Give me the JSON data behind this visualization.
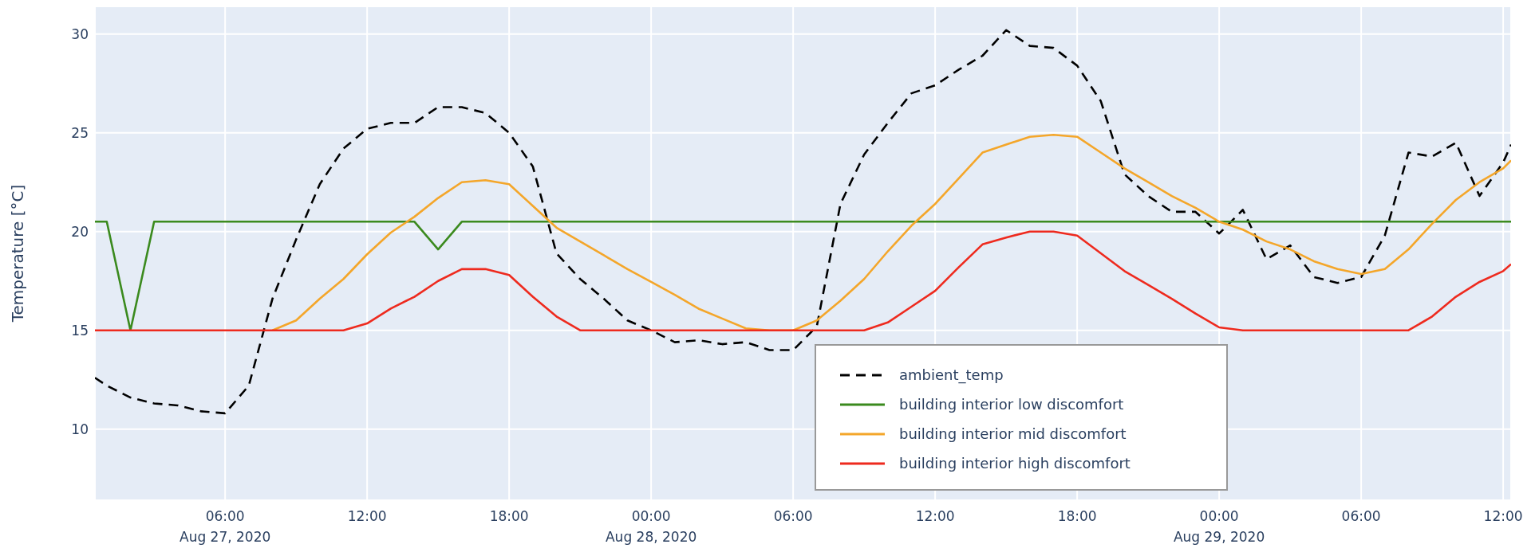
{
  "chart_data": {
    "type": "line",
    "ylabel": "Temperature [°C]",
    "x": [
      "2020-08-27T00:30",
      "2020-08-27T01:00",
      "2020-08-27T02:00",
      "2020-08-27T03:00",
      "2020-08-27T04:00",
      "2020-08-27T05:00",
      "2020-08-27T06:00",
      "2020-08-27T07:00",
      "2020-08-27T08:00",
      "2020-08-27T09:00",
      "2020-08-27T10:00",
      "2020-08-27T11:00",
      "2020-08-27T12:00",
      "2020-08-27T13:00",
      "2020-08-27T14:00",
      "2020-08-27T15:00",
      "2020-08-27T16:00",
      "2020-08-27T17:00",
      "2020-08-27T18:00",
      "2020-08-27T19:00",
      "2020-08-27T20:00",
      "2020-08-27T21:00",
      "2020-08-27T22:00",
      "2020-08-27T23:00",
      "2020-08-28T00:00",
      "2020-08-28T01:00",
      "2020-08-28T02:00",
      "2020-08-28T03:00",
      "2020-08-28T04:00",
      "2020-08-28T05:00",
      "2020-08-28T06:00",
      "2020-08-28T07:00",
      "2020-08-28T08:00",
      "2020-08-28T09:00",
      "2020-08-28T10:00",
      "2020-08-28T11:00",
      "2020-08-28T12:00",
      "2020-08-28T13:00",
      "2020-08-28T14:00",
      "2020-08-28T15:00",
      "2020-08-28T16:00",
      "2020-08-28T17:00",
      "2020-08-28T18:00",
      "2020-08-28T19:00",
      "2020-08-28T20:00",
      "2020-08-28T21:00",
      "2020-08-28T22:00",
      "2020-08-28T23:00",
      "2020-08-29T00:00",
      "2020-08-29T01:00",
      "2020-08-29T02:00",
      "2020-08-29T03:00",
      "2020-08-29T04:00",
      "2020-08-29T05:00",
      "2020-08-29T06:00",
      "2020-08-29T07:00",
      "2020-08-29T08:00",
      "2020-08-29T09:00",
      "2020-08-29T10:00",
      "2020-08-29T11:00",
      "2020-08-29T12:00",
      "2020-08-29T12:20"
    ],
    "series": [
      {
        "name": "ambient_temp",
        "color": "#000000",
        "line_style": "dashed",
        "values": [
          12.6,
          12.2,
          11.6,
          11.3,
          11.2,
          10.9,
          10.8,
          12.2,
          16.6,
          19.6,
          22.4,
          24.2,
          25.2,
          25.5,
          25.5,
          26.3,
          26.3,
          26.0,
          25.0,
          23.3,
          18.9,
          17.6,
          16.6,
          15.5,
          15.0,
          14.4,
          14.5,
          14.3,
          14.4,
          14.0,
          14.0,
          15.2,
          21.4,
          23.9,
          25.5,
          27.0,
          27.4,
          28.2,
          28.9,
          30.2,
          29.4,
          29.3,
          28.4,
          26.6,
          22.9,
          21.8,
          21.0,
          21.0,
          19.9,
          21.1,
          18.6,
          19.3,
          17.7,
          17.4,
          17.7,
          19.8,
          24.0,
          23.8,
          24.5,
          21.8,
          23.5,
          24.4
        ]
      },
      {
        "name": "building interior low discomfort",
        "color": "#3b8a1e",
        "line_style": "solid",
        "values": [
          20.5,
          20.5,
          15.0,
          20.5,
          20.5,
          20.5,
          20.5,
          20.5,
          20.5,
          20.5,
          20.5,
          20.5,
          20.5,
          20.5,
          20.5,
          19.1,
          20.5,
          20.5,
          20.5,
          20.5,
          20.5,
          20.5,
          20.5,
          20.5,
          20.5,
          20.5,
          20.5,
          20.5,
          20.5,
          20.5,
          20.5,
          20.5,
          20.5,
          20.5,
          20.5,
          20.5,
          20.5,
          20.5,
          20.5,
          20.5,
          20.5,
          20.5,
          20.5,
          20.5,
          20.5,
          20.5,
          20.5,
          20.5,
          20.5,
          20.5,
          20.5,
          20.5,
          20.5,
          20.5,
          20.5,
          20.5,
          20.5,
          20.5,
          20.5,
          20.5,
          20.5,
          20.5
        ]
      },
      {
        "name": "building interior mid discomfort",
        "color": "#f4a62a",
        "line_style": "solid",
        "values": [
          null,
          null,
          null,
          null,
          null,
          null,
          null,
          null,
          15.0,
          15.5,
          16.6,
          17.6,
          18.85,
          19.95,
          20.75,
          21.7,
          22.5,
          22.6,
          22.4,
          21.3,
          20.2,
          19.5,
          18.8,
          18.1,
          17.45,
          16.8,
          16.1,
          15.6,
          15.1,
          15.0,
          15.0,
          15.5,
          16.5,
          17.6,
          19.0,
          20.3,
          21.4,
          22.7,
          24.0,
          24.4,
          24.8,
          24.9,
          24.8,
          24.0,
          23.2,
          22.5,
          21.8,
          21.2,
          20.5,
          20.1,
          19.5,
          19.1,
          18.5,
          18.1,
          17.85,
          18.1,
          19.1,
          20.4,
          21.6,
          22.5,
          23.2,
          23.6
        ]
      },
      {
        "name": "building interior high discomfort",
        "color": "#ee2a1e",
        "line_style": "solid",
        "values": [
          15.0,
          15.0,
          15.0,
          15.0,
          15.0,
          15.0,
          15.0,
          15.0,
          15.0,
          15.0,
          15.0,
          15.0,
          15.35,
          16.1,
          16.7,
          17.5,
          18.1,
          18.1,
          17.8,
          16.7,
          15.7,
          15.0,
          15.0,
          15.0,
          15.0,
          15.0,
          15.0,
          15.0,
          15.0,
          15.0,
          15.0,
          15.0,
          15.0,
          15.0,
          15.4,
          16.2,
          17.0,
          18.2,
          19.35,
          19.7,
          20.0,
          20.0,
          19.8,
          18.9,
          18.0,
          17.3,
          16.6,
          15.85,
          15.15,
          15.0,
          15.0,
          15.0,
          15.0,
          15.0,
          15.0,
          15.0,
          15.0,
          15.7,
          16.7,
          17.45,
          18.0,
          18.35
        ]
      }
    ],
    "xlim": [
      "2020-08-27T00:30",
      "2020-08-29T12:20"
    ],
    "xticks": [
      {
        "value": "2020-08-27T06:00",
        "label": "06:00\nAug 27, 2020"
      },
      {
        "value": "2020-08-27T12:00",
        "label": "12:00"
      },
      {
        "value": "2020-08-27T18:00",
        "label": "18:00"
      },
      {
        "value": "2020-08-28T00:00",
        "label": "00:00\nAug 28, 2020"
      },
      {
        "value": "2020-08-28T06:00",
        "label": "06:00"
      },
      {
        "value": "2020-08-28T12:00",
        "label": "12:00"
      },
      {
        "value": "2020-08-28T18:00",
        "label": "18:00"
      },
      {
        "value": "2020-08-29T00:00",
        "label": "00:00\nAug 29, 2020"
      },
      {
        "value": "2020-08-29T06:00",
        "label": "06:00"
      },
      {
        "value": "2020-08-29T12:00",
        "label": "12:00"
      }
    ],
    "ylim": [
      6.4,
      31.4
    ],
    "yticks": [
      10,
      15,
      20,
      25,
      30
    ],
    "grid": true,
    "legend": "bottom"
  }
}
